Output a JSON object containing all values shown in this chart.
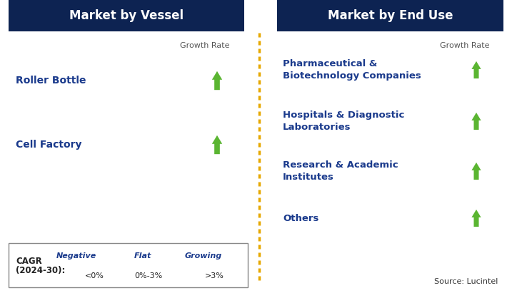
{
  "title_left": "Market by Vessel",
  "title_right": "Market by End Use",
  "header_bg": "#0d2352",
  "header_text_color": "#ffffff",
  "left_items": [
    "Roller Bottle",
    "Cell Factory"
  ],
  "right_items": [
    "Pharmaceutical &\nBiotechnology Companies",
    "Hospitals & Diagnostic\nLaboratories",
    "Research & Academic\nInstitutes",
    "Others"
  ],
  "item_color": "#1a3a8c",
  "growth_rate_color": "#555555",
  "arrow_up_color": "#5ab531",
  "arrow_down_color": "#cc0000",
  "arrow_flat_color": "#e6a800",
  "divider_color": "#e6a800",
  "legend_border_color": "#888888",
  "source_text": "Source: Lucintel",
  "legend_title_line1": "CAGR",
  "legend_title_line2": "(2024-30):",
  "legend_negative_label": "Negative",
  "legend_negative_range": "<0%",
  "legend_flat_label": "Flat",
  "legend_flat_range": "0%-3%",
  "legend_growing_label": "Growing",
  "legend_growing_range": ">3%",
  "bg_color": "#ffffff",
  "fig_w": 7.17,
  "fig_h": 4.18,
  "dpi": 100
}
